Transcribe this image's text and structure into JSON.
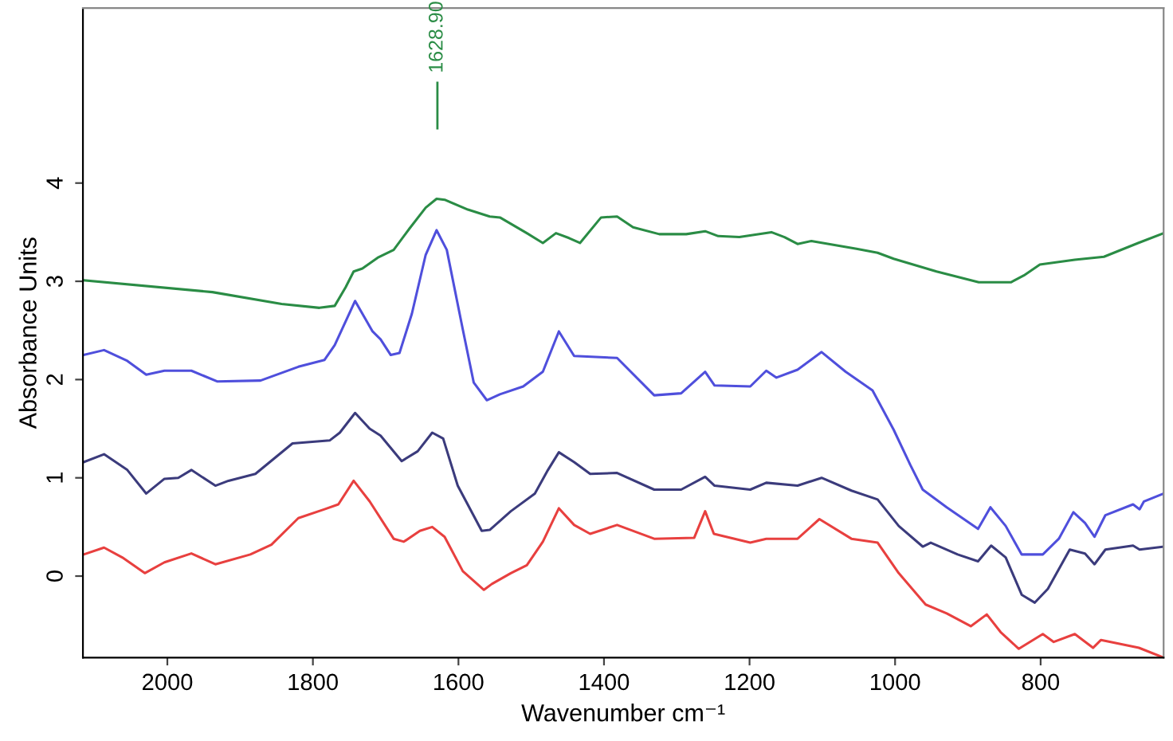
{
  "chart_data": {
    "type": "line",
    "xlabel": "Wavenumber cm⁻¹",
    "ylabel": "Absorbance Units",
    "xlim": [
      2116,
      631
    ],
    "ylim": [
      -0.83,
      5.78
    ],
    "xticks": [
      2000,
      1800,
      1600,
      1400,
      1200,
      1000,
      800
    ],
    "yticks": [
      0,
      1,
      2,
      3,
      4
    ],
    "grid": false,
    "marker": "none",
    "line_style": "solid",
    "ref_lines": [
      {
        "axis": "x",
        "value": 1628.9,
        "label": "1628.90",
        "color": "#2a8c45"
      }
    ],
    "series": [
      {
        "color": "#2a8c45",
        "x": [
          2115,
          1938,
          1843,
          1791,
          1770,
          1755,
          1744,
          1732,
          1711,
          1689,
          1667,
          1645,
          1630,
          1619,
          1587,
          1557,
          1543,
          1506,
          1484,
          1466,
          1448,
          1433,
          1404,
          1382,
          1360,
          1324,
          1287,
          1261,
          1243,
          1214,
          1170,
          1152,
          1134,
          1115,
          1053,
          1024,
          1002,
          943,
          885,
          841,
          823,
          801,
          753,
          713,
          666,
          631
        ],
        "values": [
          3.01,
          2.89,
          2.77,
          2.73,
          2.75,
          2.94,
          3.1,
          3.13,
          3.24,
          3.32,
          3.54,
          3.75,
          3.84,
          3.83,
          3.73,
          3.66,
          3.65,
          3.49,
          3.39,
          3.49,
          3.44,
          3.39,
          3.65,
          3.66,
          3.55,
          3.48,
          3.48,
          3.51,
          3.46,
          3.45,
          3.5,
          3.45,
          3.38,
          3.41,
          3.33,
          3.29,
          3.23,
          3.1,
          2.99,
          2.99,
          3.06,
          3.17,
          3.22,
          3.25,
          3.39,
          3.49
        ]
      },
      {
        "color": "#4f4fdc",
        "x": [
          2115,
          2087,
          2055,
          2029,
          2004,
          1967,
          1931,
          1872,
          1820,
          1784,
          1770,
          1742,
          1718,
          1707,
          1693,
          1681,
          1664,
          1645,
          1630,
          1616,
          1594,
          1579,
          1561,
          1543,
          1511,
          1484,
          1462,
          1441,
          1382,
          1331,
          1294,
          1261,
          1248,
          1199,
          1177,
          1163,
          1134,
          1101,
          1068,
          1031,
          1002,
          979,
          962,
          929,
          886,
          869,
          848,
          826,
          797,
          775,
          755,
          739,
          726,
          711,
          673,
          664,
          658,
          631
        ],
        "values": [
          2.25,
          2.3,
          2.19,
          2.05,
          2.09,
          2.09,
          1.98,
          1.99,
          2.13,
          2.2,
          2.35,
          2.8,
          2.49,
          2.41,
          2.25,
          2.27,
          2.67,
          3.27,
          3.52,
          3.32,
          2.51,
          1.97,
          1.79,
          1.85,
          1.93,
          2.08,
          2.49,
          2.24,
          2.22,
          1.84,
          1.86,
          2.08,
          1.94,
          1.93,
          2.09,
          2.02,
          2.1,
          2.28,
          2.08,
          1.89,
          1.49,
          1.13,
          0.88,
          0.7,
          0.48,
          0.7,
          0.51,
          0.22,
          0.22,
          0.38,
          0.65,
          0.54,
          0.4,
          0.62,
          0.73,
          0.68,
          0.76,
          0.84
        ]
      },
      {
        "color": "#3b3b7c",
        "x": [
          2115,
          2087,
          2055,
          2029,
          2004,
          1985,
          1967,
          1934,
          1916,
          1879,
          1828,
          1777,
          1763,
          1742,
          1722,
          1707,
          1678,
          1656,
          1636,
          1621,
          1601,
          1568,
          1557,
          1528,
          1495,
          1477,
          1462,
          1441,
          1419,
          1382,
          1331,
          1294,
          1261,
          1248,
          1199,
          1177,
          1134,
          1101,
          1060,
          1024,
          995,
          962,
          951,
          914,
          886,
          868,
          848,
          826,
          808,
          790,
          760,
          739,
          726,
          711,
          673,
          664,
          631
        ],
        "values": [
          1.16,
          1.24,
          1.08,
          0.84,
          0.99,
          1.0,
          1.08,
          0.92,
          0.97,
          1.04,
          1.35,
          1.38,
          1.46,
          1.66,
          1.5,
          1.43,
          1.17,
          1.27,
          1.46,
          1.4,
          0.92,
          0.46,
          0.47,
          0.66,
          0.84,
          1.08,
          1.26,
          1.16,
          1.04,
          1.05,
          0.88,
          0.88,
          1.01,
          0.92,
          0.88,
          0.95,
          0.92,
          1.0,
          0.87,
          0.78,
          0.51,
          0.3,
          0.34,
          0.22,
          0.15,
          0.31,
          0.19,
          -0.19,
          -0.27,
          -0.13,
          0.27,
          0.23,
          0.12,
          0.27,
          0.31,
          0.27,
          0.3
        ]
      },
      {
        "color": "#e8403f",
        "x": [
          2115,
          2087,
          2062,
          2031,
          2004,
          1967,
          1934,
          1886,
          1857,
          1820,
          1784,
          1765,
          1744,
          1722,
          1689,
          1675,
          1653,
          1636,
          1619,
          1594,
          1565,
          1554,
          1528,
          1506,
          1484,
          1462,
          1441,
          1419,
          1382,
          1331,
          1276,
          1261,
          1249,
          1199,
          1177,
          1134,
          1104,
          1060,
          1024,
          995,
          958,
          929,
          896,
          874,
          855,
          830,
          797,
          782,
          753,
          728,
          717,
          665,
          631
        ],
        "values": [
          0.22,
          0.29,
          0.19,
          0.03,
          0.14,
          0.23,
          0.12,
          0.22,
          0.32,
          0.59,
          0.68,
          0.73,
          0.97,
          0.76,
          0.38,
          0.35,
          0.46,
          0.5,
          0.4,
          0.05,
          -0.14,
          -0.08,
          0.03,
          0.11,
          0.35,
          0.69,
          0.52,
          0.43,
          0.52,
          0.38,
          0.39,
          0.66,
          0.43,
          0.34,
          0.38,
          0.38,
          0.58,
          0.38,
          0.34,
          0.03,
          -0.29,
          -0.38,
          -0.51,
          -0.39,
          -0.57,
          -0.74,
          -0.59,
          -0.67,
          -0.59,
          -0.73,
          -0.65,
          -0.73,
          -0.83
        ]
      }
    ]
  }
}
